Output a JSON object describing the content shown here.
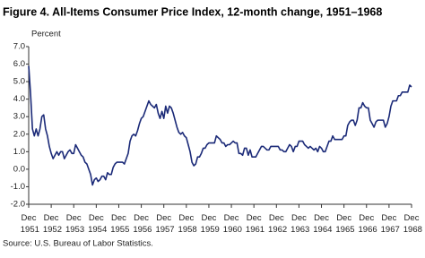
{
  "chart_data": {
    "type": "line",
    "title": "Figure 4. All-Items Consumer Price Index, 12-month change, 1951–1968",
    "y_label": "Percent",
    "source": "Source: U.S. Bureau of Labor Statistics.",
    "categories": [
      "Dec 1951",
      null,
      null,
      null,
      null,
      null,
      null,
      null,
      null,
      null,
      null,
      null,
      "Dec 1952",
      null,
      null,
      null,
      null,
      null,
      null,
      null,
      null,
      null,
      null,
      null,
      "Dec 1953",
      null,
      null,
      null,
      null,
      null,
      null,
      null,
      null,
      null,
      null,
      null,
      "Dec 1954",
      null,
      null,
      null,
      null,
      null,
      null,
      null,
      null,
      null,
      null,
      null,
      "Dec 1955",
      null,
      null,
      null,
      null,
      null,
      null,
      null,
      null,
      null,
      null,
      null,
      "Dec 1956",
      null,
      null,
      null,
      null,
      null,
      null,
      null,
      null,
      null,
      null,
      null,
      "Dec 1957",
      null,
      null,
      null,
      null,
      null,
      null,
      null,
      null,
      null,
      null,
      null,
      "Dec 1958",
      null,
      null,
      null,
      null,
      null,
      null,
      null,
      null,
      null,
      null,
      null,
      "Dec 1959",
      null,
      null,
      null,
      null,
      null,
      null,
      null,
      null,
      null,
      null,
      null,
      "Dec 1960",
      null,
      null,
      null,
      null,
      null,
      null,
      null,
      null,
      null,
      null,
      null,
      "Dec 1961",
      null,
      null,
      null,
      null,
      null,
      null,
      null,
      null,
      null,
      null,
      null,
      "Dec 1962",
      null,
      null,
      null,
      null,
      null,
      null,
      null,
      null,
      null,
      null,
      null,
      "Dec 1963",
      null,
      null,
      null,
      null,
      null,
      null,
      null,
      null,
      null,
      null,
      null,
      "Dec 1964",
      null,
      null,
      null,
      null,
      null,
      null,
      null,
      null,
      null,
      null,
      null,
      "Dec 1965",
      null,
      null,
      null,
      null,
      null,
      null,
      null,
      null,
      null,
      null,
      null,
      "Dec 1966",
      null,
      null,
      null,
      null,
      null,
      null,
      null,
      null,
      null,
      null,
      null,
      "Dec 1967",
      null,
      null,
      null,
      null,
      null,
      null,
      null,
      null,
      null,
      null,
      null,
      "Dec 1968"
    ],
    "series": [
      {
        "name": "All-Items CPI 12-month change",
        "color": "#1b2a78",
        "values": [
          5.9,
          4.3,
          2.3,
          1.9,
          2.3,
          1.9,
          2.3,
          3.0,
          3.1,
          2.3,
          1.9,
          1.3,
          0.9,
          0.6,
          0.8,
          1.0,
          0.8,
          1.0,
          1.0,
          0.6,
          0.8,
          1.0,
          1.1,
          0.9,
          0.9,
          1.4,
          1.2,
          1.0,
          0.8,
          0.7,
          0.4,
          0.3,
          0.0,
          -0.3,
          -0.9,
          -0.6,
          -0.5,
          -0.7,
          -0.6,
          -0.4,
          -0.4,
          -0.6,
          -0.2,
          -0.3,
          -0.3,
          0.1,
          0.3,
          0.4,
          0.4,
          0.4,
          0.4,
          0.3,
          0.6,
          0.9,
          1.6,
          1.9,
          2.0,
          1.9,
          2.2,
          2.6,
          2.9,
          3.0,
          3.3,
          3.6,
          3.9,
          3.7,
          3.6,
          3.5,
          3.7,
          3.2,
          2.9,
          3.3,
          2.9,
          3.6,
          3.2,
          3.6,
          3.5,
          3.2,
          2.8,
          2.4,
          2.1,
          2.0,
          2.1,
          1.9,
          1.8,
          1.4,
          1.0,
          0.4,
          0.2,
          0.3,
          0.7,
          0.7,
          0.9,
          1.2,
          1.2,
          1.4,
          1.5,
          1.5,
          1.5,
          1.5,
          1.9,
          1.8,
          1.7,
          1.5,
          1.5,
          1.3,
          1.4,
          1.4,
          1.5,
          1.6,
          1.5,
          1.5,
          0.9,
          0.9,
          0.8,
          1.2,
          1.2,
          0.8,
          1.1,
          0.7,
          0.7,
          0.7,
          0.9,
          1.1,
          1.3,
          1.3,
          1.2,
          1.1,
          1.1,
          1.3,
          1.3,
          1.3,
          1.3,
          1.3,
          1.1,
          1.1,
          1.0,
          1.0,
          1.2,
          1.4,
          1.3,
          1.0,
          1.3,
          1.3,
          1.6,
          1.6,
          1.6,
          1.4,
          1.3,
          1.2,
          1.3,
          1.2,
          1.1,
          1.2,
          1.0,
          1.3,
          1.2,
          1.0,
          1.0,
          1.3,
          1.6,
          1.6,
          1.9,
          1.7,
          1.7,
          1.7,
          1.7,
          1.7,
          1.9,
          1.9,
          2.5,
          2.7,
          2.8,
          2.8,
          2.5,
          2.8,
          3.5,
          3.5,
          3.8,
          3.6,
          3.5,
          3.5,
          2.8,
          2.6,
          2.4,
          2.7,
          2.8,
          2.8,
          2.8,
          2.8,
          2.4,
          2.6,
          3.0,
          3.6,
          3.9,
          3.9,
          3.9,
          4.2,
          4.2,
          4.4,
          4.4,
          4.4,
          4.4,
          4.8,
          4.7
        ]
      }
    ],
    "ylim": [
      -2,
      7
    ],
    "yticks": [
      {
        "value": -2,
        "label": "-2.0"
      },
      {
        "value": -1,
        "label": "-1.0"
      },
      {
        "value": 0,
        "label": "0.0"
      },
      {
        "value": 1,
        "label": "1.0"
      },
      {
        "value": 2,
        "label": "2.0"
      },
      {
        "value": 3,
        "label": "3.0"
      },
      {
        "value": 4,
        "label": "4.0"
      },
      {
        "value": 5,
        "label": "5.0"
      },
      {
        "value": 6,
        "label": "6.0"
      },
      {
        "value": 7,
        "label": "7.0"
      }
    ],
    "grid": false
  }
}
